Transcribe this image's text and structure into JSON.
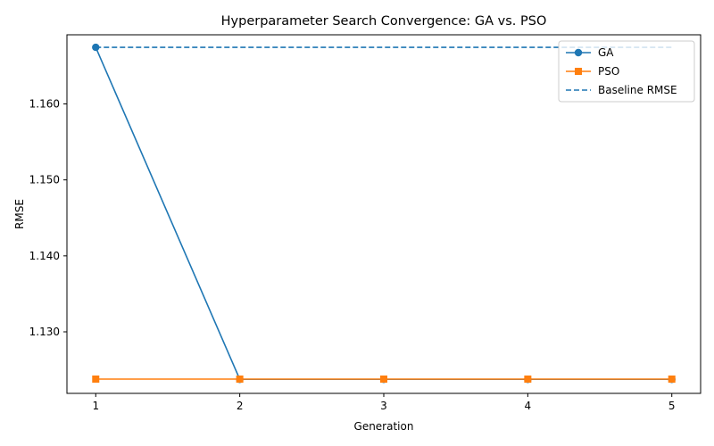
{
  "chart_data": {
    "type": "line",
    "title": "Hyperparameter Search Convergence: GA vs. PSO",
    "xlabel": "Generation",
    "ylabel": "RMSE",
    "x": [
      1,
      2,
      3,
      4,
      5
    ],
    "x_ticks": [
      "1",
      "2",
      "3",
      "4",
      "5"
    ],
    "y_ticks": [
      "1.130",
      "1.140",
      "1.150",
      "1.160"
    ],
    "y_tick_values": [
      1.13,
      1.14,
      1.15,
      1.16
    ],
    "xlim": [
      0.8,
      5.2
    ],
    "ylim": [
      1.1219,
      1.1691
    ],
    "grid": false,
    "legend_position": "top-right",
    "series": [
      {
        "name": "GA",
        "values": [
          1.16745,
          1.12375,
          1.12375,
          1.12375,
          1.12375
        ],
        "color": "#1f77b4",
        "marker": "circle",
        "line_style": "solid"
      },
      {
        "name": "PSO",
        "values": [
          1.12378,
          1.12378,
          1.12378,
          1.12378,
          1.12378
        ],
        "color": "#ff7f0e",
        "marker": "square",
        "line_style": "solid"
      }
    ],
    "reference_lines": [
      {
        "name": "Baseline RMSE",
        "value": 1.16745,
        "color": "#1f77b4",
        "line_style": "dashed"
      }
    ]
  }
}
